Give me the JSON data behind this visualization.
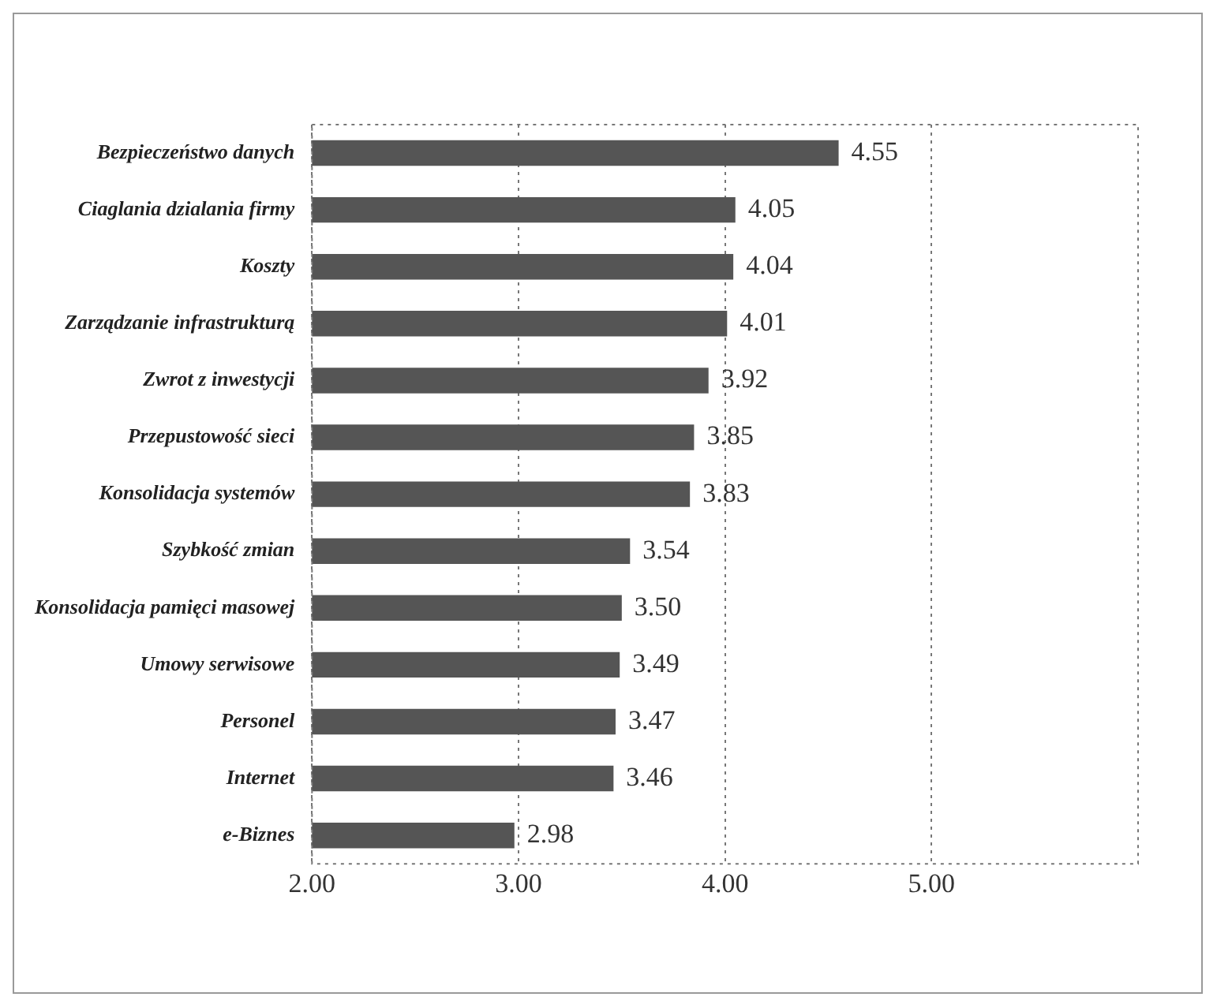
{
  "chart_data": {
    "type": "bar",
    "orientation": "horizontal",
    "categories": [
      "Bezpieczeństwo danych",
      "Ciaglania dzialania firmy",
      "Koszty",
      "Zarządzanie infrastrukturą",
      "Zwrot z inwestycji",
      "Przepustowość sieci",
      "Konsolidacja systemów",
      "Szybkość zmian",
      "Konsolidacja pamięci masowej",
      "Umowy serwisowe",
      "Personel",
      "Internet",
      "e-Biznes"
    ],
    "values": [
      4.55,
      4.05,
      4.04,
      4.01,
      3.92,
      3.85,
      3.83,
      3.54,
      3.5,
      3.49,
      3.47,
      3.46,
      2.98
    ],
    "value_labels": [
      "4.55",
      "4.05",
      "4.04",
      "4.01",
      "3.92",
      "3.85",
      "3.83",
      "3.54",
      "3.50",
      "3.49",
      "3.47",
      "3.46",
      "2.98"
    ],
    "color": "#555555",
    "xlim": [
      2,
      6
    ],
    "xticks": [
      {
        "value": 2,
        "label": "2.00"
      },
      {
        "value": 3,
        "label": "3.00"
      },
      {
        "value": 4,
        "label": "4.00"
      },
      {
        "value": 5,
        "label": "5.00"
      }
    ],
    "grid": "x",
    "legend": false
  }
}
